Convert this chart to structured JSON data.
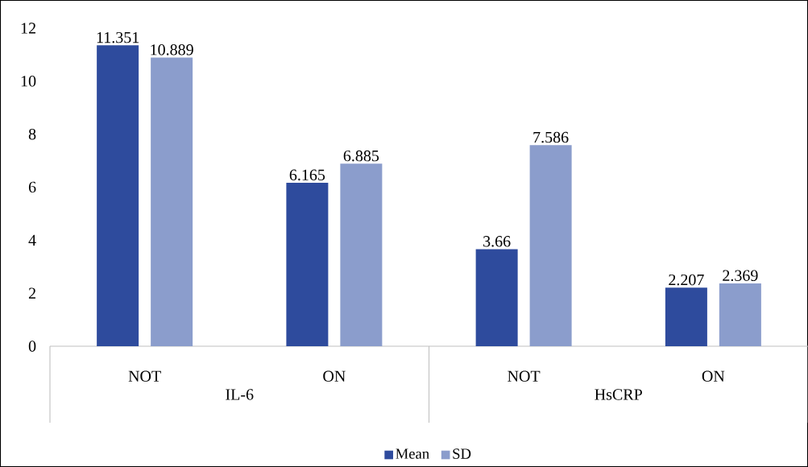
{
  "chart_data": {
    "type": "bar",
    "categories": [
      "NOT",
      "ON",
      "NOT",
      "ON"
    ],
    "annotations": [
      "IL-6",
      "HsCRP"
    ],
    "series": [
      {
        "name": "Mean",
        "color": "#2e4b9d",
        "values": [
          11.351,
          6.165,
          3.66,
          2.207
        ]
      },
      {
        "name": "SD",
        "color": "#8b9dcc",
        "values": [
          10.889,
          6.885,
          7.586,
          2.369
        ]
      }
    ],
    "ylim": [
      0,
      12
    ],
    "yticks": [
      0,
      2,
      4,
      6,
      8,
      10,
      12
    ],
    "data_labels": true,
    "legend": "bottom"
  }
}
